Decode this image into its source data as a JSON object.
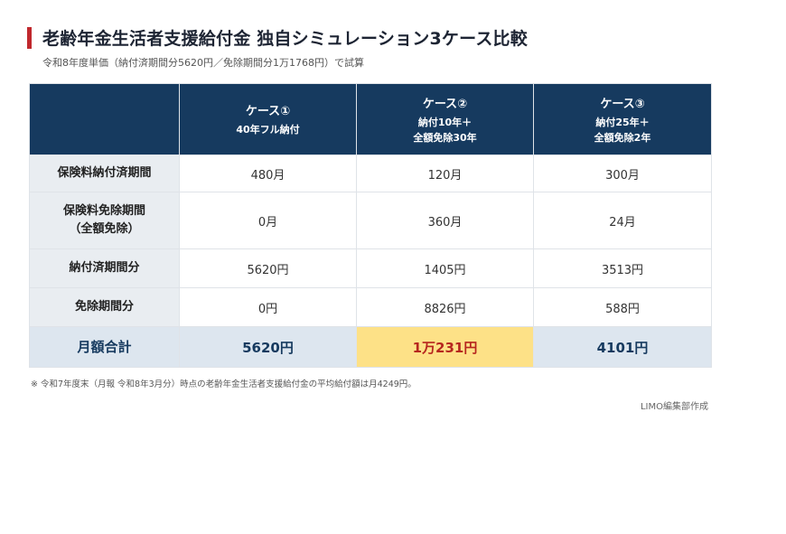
{
  "header": {
    "title": "老齢年金生活者支援給付金 独自シミュレーション3ケース比較",
    "subtitle": "令和8年度単価（納付済期間分5620円／免除期間分1万1768円）で試算"
  },
  "table": {
    "columns": [
      {
        "name": "ケース①",
        "desc": [
          "40年フル納付"
        ]
      },
      {
        "name": "ケース②",
        "desc": [
          "納付10年＋",
          "全額免除30年"
        ]
      },
      {
        "name": "ケース③",
        "desc": [
          "納付25年＋",
          "全額免除2年"
        ]
      }
    ],
    "rows": [
      {
        "label": [
          "保険料納付済期間"
        ],
        "values": [
          "480月",
          "120月",
          "300月"
        ]
      },
      {
        "label": [
          "保険料免除期間",
          "（全額免除）"
        ],
        "values": [
          "0月",
          "360月",
          "24月"
        ]
      },
      {
        "label": [
          "納付済期間分"
        ],
        "values": [
          "5620円",
          "1405円",
          "3513円"
        ]
      },
      {
        "label": [
          "免除期間分"
        ],
        "values": [
          "0円",
          "8826円",
          "588円"
        ]
      }
    ],
    "total": {
      "label": "月額合計",
      "values": [
        "5620円",
        "1万231円",
        "4101円"
      ]
    }
  },
  "footer": {
    "note": "※ 令和7年度末（月報 令和8年3月分）時点の老齢年金生活者支援給付金の平均給付額は月4249円。",
    "credit": "LIMO編集部作成"
  },
  "colors": {
    "header_bg": "#163a5f",
    "accent": "#c0282d",
    "highlight_bg": "#fde187",
    "highlight_text": "#b6261e"
  }
}
